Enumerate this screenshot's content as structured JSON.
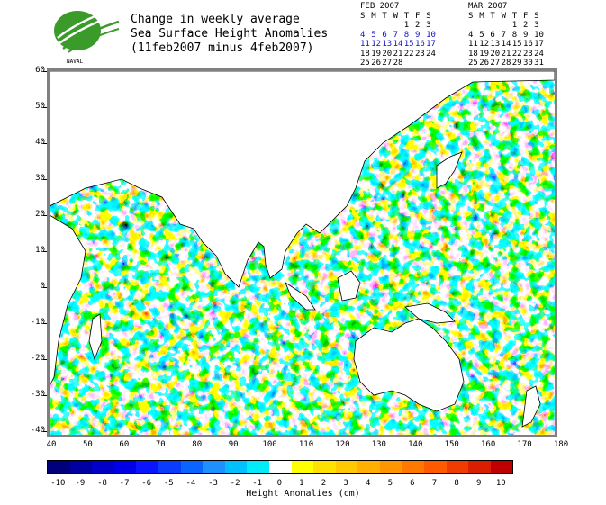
{
  "title": {
    "line1": "Change in weekly average",
    "line2": "Sea Surface Height Anomalies",
    "line3": "(11feb2007 minus 4feb2007)"
  },
  "logo": {
    "icon": "naval-research-logo",
    "text": "NAVAL",
    "color": "#3a9a2a"
  },
  "calendars": [
    {
      "month": "FEB 2007",
      "days_header": [
        "S",
        "M",
        "T",
        "W",
        "T",
        "F",
        "S"
      ],
      "weeks": [
        [
          "",
          "",
          "",
          "",
          "1",
          "2",
          "3"
        ],
        [
          "4",
          "5",
          "6",
          "7",
          "8",
          "9",
          "10"
        ],
        [
          "11",
          "12",
          "13",
          "14",
          "15",
          "16",
          "17"
        ],
        [
          "18",
          "19",
          "20",
          "21",
          "22",
          "23",
          "24"
        ],
        [
          "25",
          "26",
          "27",
          "28",
          "",
          "",
          ""
        ]
      ],
      "highlight_weeks": [
        1,
        2
      ]
    },
    {
      "month": "MAR 2007",
      "days_header": [
        "S",
        "M",
        "T",
        "W",
        "T",
        "F",
        "S"
      ],
      "weeks": [
        [
          "",
          "",
          "",
          "",
          "1",
          "2",
          "3"
        ],
        [
          "4",
          "5",
          "6",
          "7",
          "8",
          "9",
          "10"
        ],
        [
          "11",
          "12",
          "13",
          "14",
          "15",
          "16",
          "17"
        ],
        [
          "18",
          "19",
          "20",
          "21",
          "22",
          "23",
          "24"
        ],
        [
          "25",
          "26",
          "27",
          "28",
          "29",
          "30",
          "31"
        ]
      ],
      "highlight_weeks": []
    }
  ],
  "map": {
    "lat_labels": [
      "60",
      "50",
      "40",
      "30",
      "20",
      "10",
      "0",
      "-10",
      "-20",
      "-30",
      "-40"
    ],
    "lon_labels": [
      "40",
      "50",
      "60",
      "70",
      "80",
      "90",
      "100",
      "110",
      "120",
      "130",
      "140",
      "150",
      "160",
      "170",
      "180"
    ],
    "land_color": "#ffffff",
    "frame_color": "#808080"
  },
  "colorbar": {
    "title": "Height Anomalies (cm)",
    "labels": [
      "-10",
      "-9",
      "-8",
      "-7",
      "-6",
      "-5",
      "-4",
      "-3",
      "-2",
      "-1",
      "0",
      "1",
      "2",
      "3",
      "4",
      "5",
      "6",
      "7",
      "8",
      "9",
      "10"
    ],
    "colors": [
      "#00007a",
      "#0000a0",
      "#0000c8",
      "#0000e6",
      "#0a14ff",
      "#0a3cff",
      "#0a64ff",
      "#1e90ff",
      "#00c0ff",
      "#00ecf8",
      "#ffffff",
      "#ffff00",
      "#ffe000",
      "#ffc800",
      "#ffb000",
      "#ff9600",
      "#ff7800",
      "#ff5a00",
      "#f03c00",
      "#dc1e00",
      "#c00000"
    ]
  }
}
